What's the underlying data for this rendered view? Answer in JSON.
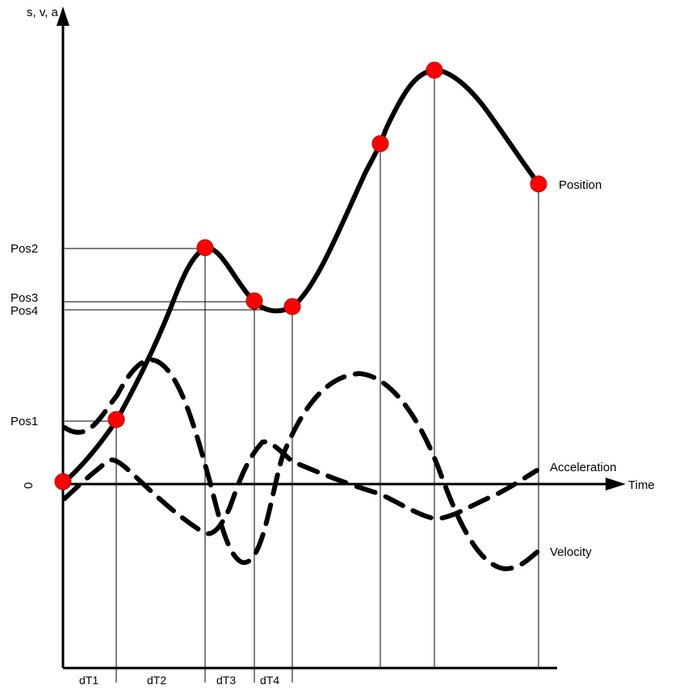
{
  "chart_data": {
    "type": "line",
    "axis_labels": {
      "y": "s, v, a",
      "x": "Time",
      "origin": "0"
    },
    "position_level_labels": [
      "Pos1",
      "Pos2",
      "Pos3",
      "Pos4"
    ],
    "interval_labels": [
      "dT1",
      "dT2",
      "dT3",
      "dT4"
    ],
    "series": [
      {
        "name": "Position",
        "style": "solid",
        "has_point_markers": true
      },
      {
        "name": "Velocity",
        "style": "dashed"
      },
      {
        "name": "Acceleration",
        "style": "dashed"
      }
    ],
    "grid": false,
    "colors": {
      "curve": "#000000",
      "marker": "#ff0000",
      "background": "#ffffff"
    }
  }
}
